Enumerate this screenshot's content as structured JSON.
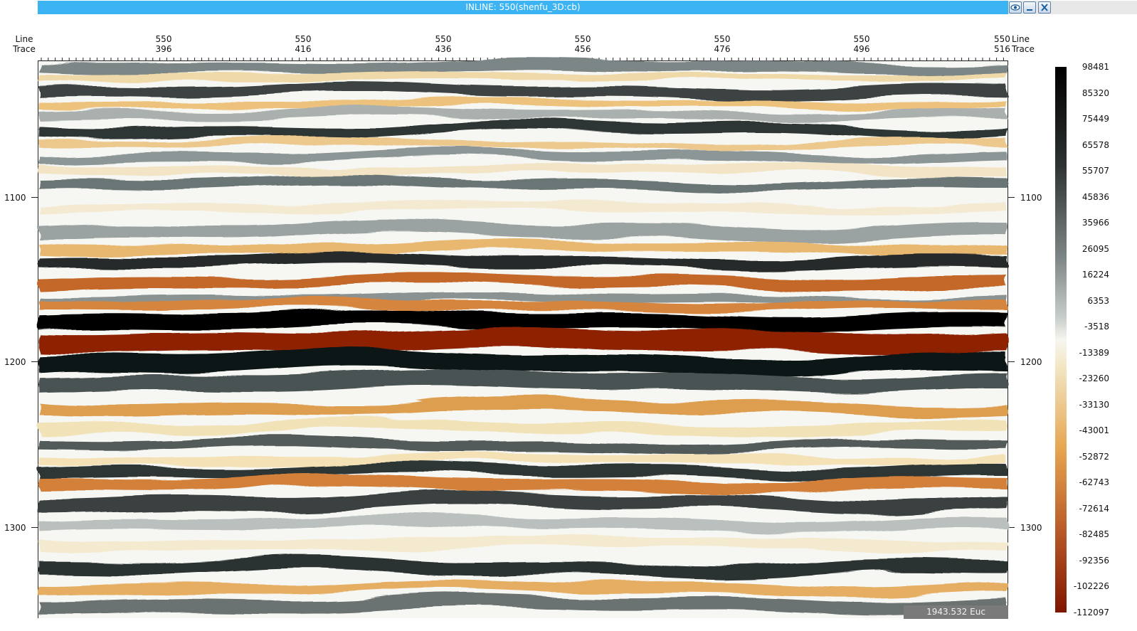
{
  "window": {
    "title": "INLINE: 550(shenfu_3D:cb)",
    "buttons": [
      "eye-icon",
      "minimize-icon",
      "close-icon"
    ]
  },
  "axes": {
    "left_header": [
      "Line",
      "Trace"
    ],
    "right_header": [
      "Line",
      "Trace"
    ],
    "top_ticks": [
      {
        "line": "550",
        "trace": "396"
      },
      {
        "line": "550",
        "trace": "416"
      },
      {
        "line": "550",
        "trace": "436"
      },
      {
        "line": "550",
        "trace": "456"
      },
      {
        "line": "550",
        "trace": "476"
      },
      {
        "line": "550",
        "trace": "496"
      },
      {
        "line": "550",
        "trace": "516"
      }
    ],
    "depth_ticks": [
      "1100",
      "1200",
      "1300"
    ]
  },
  "colorbar": {
    "labels": [
      "98481",
      "85320",
      "75449",
      "65578",
      "55707",
      "45836",
      "35966",
      "26095",
      "16224",
      "6353",
      "-3518",
      "-13389",
      "-23260",
      "-33130",
      "-43001",
      "-52872",
      "-62743",
      "-72614",
      "-82485",
      "-92356",
      "-102226",
      "-112097"
    ]
  },
  "status": {
    "readout": "1943.532 Euc"
  },
  "colors": {
    "titlebar": "#3cb4f4",
    "positive": "#000000",
    "mid_gray": "#8c9494",
    "neutral": "#f4f2e6",
    "negative_light": "#e8a858",
    "negative_dark": "#8a1e00"
  }
}
